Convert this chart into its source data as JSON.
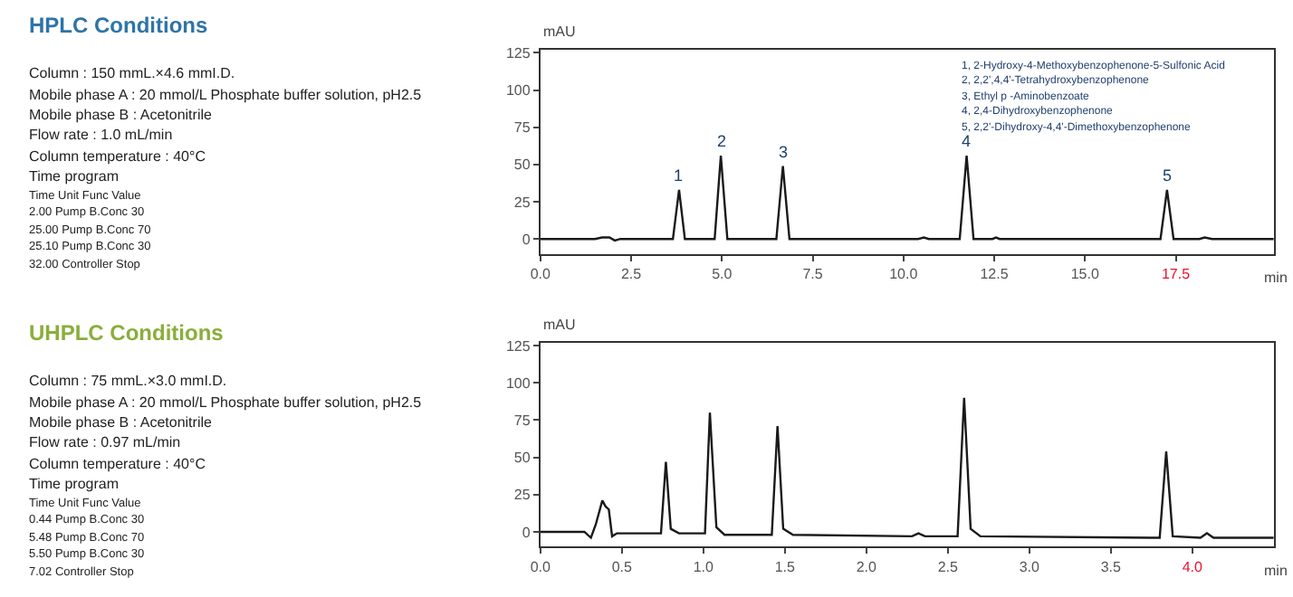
{
  "chart_data": [
    {
      "type": "other",
      "title": "HPLC Conditions",
      "annotations": [
        "Column : 150 mmL.×4.6 mmI.D.",
        "Mobile phase A : 20 mmol/L Phosphate buffer solution, pH2.5",
        "Mobile phase B : Acetonitrile",
        "Flow rate : 1.0 mL/min",
        "Column temperature : 40°C",
        "Time program",
        "Time Unit Func Value",
        "2.00 Pump B.Conc 30",
        "25.00 Pump B.Conc 70",
        "25.10 Pump B.Conc 30",
        "32.00 Controller Stop"
      ]
    },
    {
      "type": "line",
      "xlabel": "min",
      "ylabel": "mAU",
      "xlim": [
        0,
        20.2
      ],
      "ylim": [
        -10,
        127
      ],
      "xticks": [
        {
          "value": 0,
          "label": "0.0"
        },
        {
          "value": 2.5,
          "label": "2.5"
        },
        {
          "value": 5,
          "label": "5.0"
        },
        {
          "value": 7.5,
          "label": "7.5"
        },
        {
          "value": 10,
          "label": "10.0"
        },
        {
          "value": 12.5,
          "label": "12.5"
        },
        {
          "value": 15,
          "label": "15.0"
        },
        {
          "value": 17.5,
          "label": "17.5"
        }
      ],
      "yticks": [
        0,
        25,
        50,
        75,
        100,
        125
      ],
      "x": [
        0,
        1.5,
        1.7,
        1.9,
        2.05,
        2.2,
        3.65,
        3.82,
        3.98,
        4.8,
        4.97,
        5.15,
        6.5,
        6.68,
        6.86,
        10.4,
        10.56,
        10.7,
        11.55,
        11.74,
        11.93,
        12.45,
        12.55,
        12.65,
        17.08,
        17.26,
        17.44,
        18.15,
        18.3,
        18.5,
        20.2
      ],
      "series": [
        {
          "color": "#1a1a1a",
          "values": [
            0,
            0,
            1,
            1,
            -1,
            0,
            0,
            33,
            0,
            0,
            56,
            0,
            0,
            49,
            0,
            0,
            1,
            0,
            0,
            56,
            0,
            0,
            1,
            0,
            0,
            33,
            0,
            0,
            1,
            0,
            0
          ]
        }
      ],
      "annotations": [
        {
          "text": "1",
          "x": 3.82,
          "y": 33
        },
        {
          "text": "2",
          "x": 4.97,
          "y": 56
        },
        {
          "text": "3",
          "x": 6.68,
          "y": 49
        },
        {
          "text": "4",
          "x": 11.74,
          "y": 56
        },
        {
          "text": "5",
          "x": 17.26,
          "y": 33
        },
        "1, 2-Hydroxy-4-Methoxybenzophenone-5-Sulfonic Acid",
        "2, 2,2',4,4'-Tetrahydroxybenzophenone",
        "3, Ethyl p -Aminobenzoate",
        "4, 2,4-Dihydroxybenzophenone",
        "5, 2,2'-Dihydroxy-4,4'-Dimethoxybenzophenone"
      ]
    },
    {
      "type": "other",
      "title": "UHPLC Conditions",
      "annotations": [
        "Column : 75 mmL.×3.0 mmI.D.",
        "Mobile phase A : 20 mmol/L Phosphate buffer solution, pH2.5",
        "Mobile phase B : Acetonitrile",
        "Flow rate : 0.97 mL/min",
        "Column temperature : 40°C",
        "Time program",
        "Time Unit Func Value",
        "0.44 Pump B.Conc 30",
        "5.48 Pump B.Conc 70",
        "5.50 Pump B.Conc 30",
        "7.02 Controller Stop"
      ]
    },
    {
      "type": "line",
      "xlabel": "min",
      "ylabel": "mAU",
      "xlim": [
        0,
        4.5
      ],
      "ylim": [
        -10,
        127
      ],
      "xticks": [
        {
          "value": 0,
          "label": "0.0"
        },
        {
          "value": 0.5,
          "label": "0.5"
        },
        {
          "value": 1,
          "label": "1.0"
        },
        {
          "value": 1.5,
          "label": "1.5"
        },
        {
          "value": 2,
          "label": "2.0"
        },
        {
          "value": 2.5,
          "label": "2.5"
        },
        {
          "value": 3,
          "label": "3.0"
        },
        {
          "value": 3.5,
          "label": "3.5"
        },
        {
          "value": 4,
          "label": "4.0"
        }
      ],
      "yticks": [
        0,
        25,
        50,
        75,
        100,
        125
      ],
      "x": [
        0,
        0.27,
        0.31,
        0.34,
        0.38,
        0.4,
        0.42,
        0.44,
        0.47,
        0.74,
        0.77,
        0.8,
        0.85,
        1.01,
        1.04,
        1.08,
        1.13,
        1.42,
        1.455,
        1.49,
        1.55,
        2.28,
        2.32,
        2.36,
        2.56,
        2.6,
        2.64,
        2.7,
        3.8,
        3.84,
        3.88,
        4.05,
        4.09,
        4.13,
        4.5
      ],
      "series": [
        {
          "color": "#1a1a1a",
          "values": [
            0,
            0,
            -4,
            5,
            21,
            17,
            15,
            -3,
            -1,
            -1,
            47,
            2,
            -1,
            -1,
            80,
            3,
            -2,
            -2,
            71,
            2,
            -2,
            -3,
            -1,
            -3,
            -3,
            90,
            2,
            -3,
            -4,
            54,
            -3,
            -4,
            -1,
            -4,
            -4
          ]
        }
      ]
    }
  ]
}
